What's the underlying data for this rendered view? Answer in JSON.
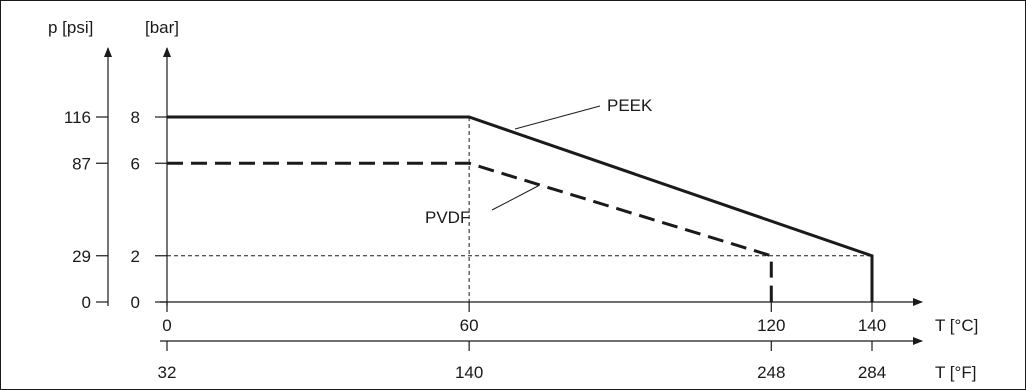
{
  "chart_data": {
    "type": "line",
    "y_axes": {
      "left": {
        "label": "p [psi]",
        "ticks": [
          "116",
          "87",
          "29",
          "0"
        ]
      },
      "right": {
        "label": "[bar]",
        "ticks": [
          "8",
          "6",
          "2",
          "0"
        ],
        "values": [
          8,
          6,
          2,
          0
        ]
      }
    },
    "x_axes": {
      "celsius": {
        "label": "T [°C]",
        "ticks": [
          "0",
          "60",
          "120",
          "140"
        ],
        "values": [
          0,
          60,
          120,
          140
        ]
      },
      "fahrenheit": {
        "label": "T [°F]",
        "ticks": [
          "32",
          "140",
          "248",
          "284"
        ]
      }
    },
    "xlim": [
      0,
      150
    ],
    "ylim": [
      0,
      8
    ],
    "series": [
      {
        "name": "PEEK",
        "style": "solid",
        "points": [
          [
            0,
            8
          ],
          [
            60,
            8
          ],
          [
            140,
            2
          ],
          [
            140,
            0
          ]
        ]
      },
      {
        "name": "PVDF",
        "style": "dashed",
        "points": [
          [
            0,
            6
          ],
          [
            60,
            6
          ],
          [
            120,
            2
          ],
          [
            120,
            0
          ]
        ]
      }
    ],
    "guides": [
      {
        "from": [
          60,
          8
        ],
        "to": [
          60,
          0
        ]
      },
      {
        "from": [
          0,
          2
        ],
        "to": [
          140,
          2
        ]
      }
    ],
    "grid": false,
    "legend": "none"
  }
}
